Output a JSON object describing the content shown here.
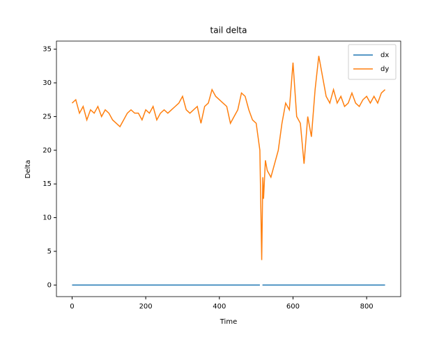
{
  "chart_data": {
    "type": "line",
    "title": "tail delta",
    "x_label": "Time",
    "y_label": "Delta",
    "xlim": [
      -42.5,
      892.5
    ],
    "xticks": [
      0,
      200,
      400,
      600,
      800
    ],
    "ylim": [
      -1.72,
      36.2
    ],
    "yticks": [
      0,
      5,
      10,
      15,
      20,
      25,
      30,
      35
    ],
    "grid": false,
    "legend": "upper right",
    "series": [
      {
        "name": "dx",
        "color": "#1f77b4",
        "x": [
          0,
          510,
          513,
          517,
          850
        ],
        "values": [
          0,
          0,
          null,
          0,
          0
        ]
      },
      {
        "name": "dy",
        "color": "#ff7f0e",
        "x": [
          0,
          10,
          20,
          30,
          40,
          50,
          60,
          70,
          80,
          90,
          100,
          110,
          120,
          130,
          140,
          150,
          160,
          170,
          180,
          190,
          200,
          210,
          220,
          230,
          240,
          250,
          260,
          270,
          280,
          290,
          300,
          310,
          320,
          330,
          340,
          350,
          360,
          370,
          380,
          390,
          400,
          410,
          420,
          430,
          440,
          450,
          460,
          470,
          480,
          490,
          500,
          505,
          510,
          515,
          518,
          520,
          525,
          530,
          540,
          550,
          560,
          570,
          580,
          590,
          600,
          610,
          620,
          630,
          640,
          650,
          660,
          670,
          680,
          690,
          700,
          710,
          720,
          730,
          740,
          750,
          760,
          770,
          780,
          790,
          800,
          810,
          820,
          830,
          840,
          850
        ],
        "values": [
          27,
          27.5,
          25.5,
          26.5,
          24.5,
          26,
          25.5,
          26.5,
          25,
          26,
          25.5,
          24.5,
          24,
          23.5,
          24.5,
          25.5,
          26,
          25.5,
          25.5,
          24.5,
          26,
          25.5,
          26.5,
          24.5,
          25.5,
          26,
          25.5,
          26,
          26.5,
          27,
          28,
          26,
          25.5,
          26,
          26.5,
          24,
          26.5,
          27,
          29,
          28,
          27.5,
          27,
          26.5,
          24,
          25,
          26,
          28.5,
          28,
          26,
          24.5,
          24,
          22,
          20,
          3.7,
          16,
          12.8,
          18.5,
          17,
          16,
          18,
          20,
          24,
          27,
          26,
          33,
          25,
          24,
          18,
          25,
          22,
          29,
          34,
          31,
          28,
          27,
          29,
          27,
          28,
          26.5,
          27,
          28.5,
          27,
          26.5,
          27.5,
          28,
          27,
          28,
          27,
          28.5,
          29
        ]
      }
    ]
  }
}
